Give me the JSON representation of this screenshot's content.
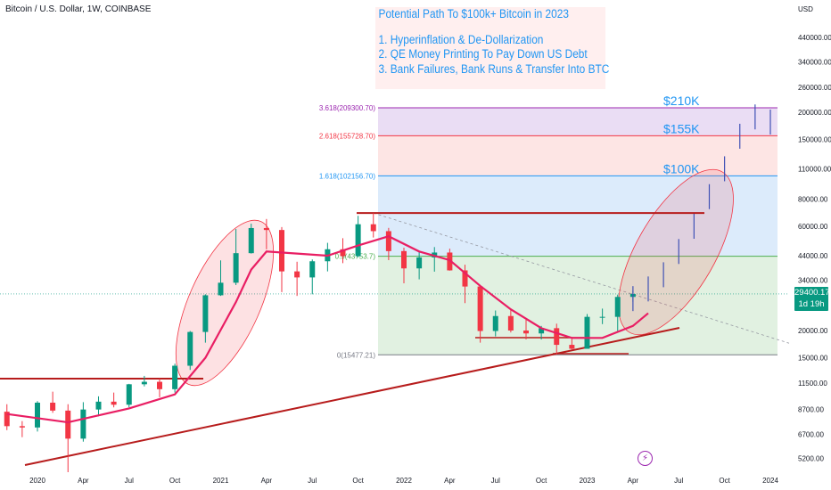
{
  "header": {
    "symbol_title": "Bitcoin / U.S. Dollar, 1W, COINBASE"
  },
  "annotation": {
    "title": "Potential Path To $100k+ Bitcoin in 2023",
    "points": [
      "1. Hyperinflation & De-Dollarization",
      "2. QE Money Printing To Pay Down US Debt",
      "3. Bank Failures, Bank Runs & Transfer Into BTC"
    ]
  },
  "price_axis": {
    "currency": "USD",
    "ticks": [
      "440000.00",
      "340000.00",
      "260000.00",
      "200000.00",
      "150000.00",
      "110000.00",
      "80000.00",
      "60000.00",
      "44000.00",
      "34000.00",
      "20000.00",
      "15000.00",
      "11500.00",
      "8700.00",
      "6700.00",
      "5200.00"
    ]
  },
  "time_axis": {
    "ticks": [
      "2020",
      "Apr",
      "Jul",
      "Oct",
      "2021",
      "Apr",
      "Jul",
      "Oct",
      "2022",
      "Apr",
      "Jul",
      "Oct",
      "2023",
      "Apr",
      "Jul",
      "Oct",
      "2024"
    ]
  },
  "current_price": {
    "price": "29400.17",
    "countdown": "1d 19h"
  },
  "indicators": {
    "bolt_icon": "lightning-bolt"
  },
  "chart_data": {
    "type": "candlestick",
    "title": "Bitcoin / U.S. Dollar, 1W, COINBASE",
    "y_scale": "log",
    "y_unit": "USD",
    "ylim": [
      4700,
      530000
    ],
    "x_range": [
      "2019-11",
      "2024-02"
    ],
    "fib_levels": [
      {
        "label": "3.618(209300.70)",
        "price": 209300.7,
        "color": "#9c27b0",
        "fill": "#e6d7f2"
      },
      {
        "label": "2.618(155728.70)",
        "price": 155728.7,
        "color": "#f23645",
        "fill": "#fde0df"
      },
      {
        "label": "1.618(102156.70)",
        "price": 102156.7,
        "color": "#2196f3",
        "fill": "#d6e8fa"
      },
      {
        "label": "0.5(43753.7)",
        "price": 43753.7,
        "color": "#4caf50",
        "fill": "#dcefdc"
      },
      {
        "label": "0(15477.21)",
        "price": 15477.21,
        "color": "#787b86",
        "fill": ""
      }
    ],
    "targets": [
      "$210K",
      "$155K",
      "$100K"
    ],
    "current_price": 29400.17,
    "series": [
      {
        "name": "BTCUSD",
        "kind": "candles",
        "color_up": "#089981",
        "color_down": "#f23645",
        "points": [
          [
            "2019-11",
            8500,
            9200,
            7000,
            7300
          ],
          [
            "2019-12",
            7300,
            7700,
            6500,
            7200
          ],
          [
            "2020-01",
            7200,
            9500,
            6900,
            9350
          ],
          [
            "2020-02",
            9350,
            10500,
            8400,
            8600
          ],
          [
            "2020-03",
            8600,
            9200,
            3800,
            6400
          ],
          [
            "2020-04",
            6400,
            9400,
            6200,
            8700
          ],
          [
            "2020-05",
            8700,
            10000,
            8100,
            9450
          ],
          [
            "2020-06",
            9450,
            10400,
            8900,
            9150
          ],
          [
            "2020-07",
            9150,
            11400,
            8900,
            11350
          ],
          [
            "2020-08",
            11350,
            12400,
            11100,
            11650
          ],
          [
            "2020-09",
            11650,
            12050,
            9900,
            10780
          ],
          [
            "2020-10",
            10780,
            14100,
            10400,
            13800
          ],
          [
            "2020-11",
            13800,
            19900,
            13200,
            19700
          ],
          [
            "2020-12",
            19700,
            29300,
            17600,
            29000
          ],
          [
            "2021-01",
            29000,
            41900,
            28800,
            33100
          ],
          [
            "2021-02",
            33100,
            58300,
            32300,
            45200
          ],
          [
            "2021-03",
            45200,
            61700,
            45000,
            58900
          ],
          [
            "2021-04",
            58900,
            64800,
            47100,
            57700
          ],
          [
            "2021-05",
            57700,
            59500,
            30000,
            37300
          ],
          [
            "2021-06",
            37300,
            41300,
            28800,
            35000
          ],
          [
            "2021-07",
            35000,
            42300,
            29300,
            41500
          ],
          [
            "2021-08",
            41500,
            50400,
            37300,
            47100
          ],
          [
            "2021-09",
            47100,
            52900,
            40700,
            43800
          ],
          [
            "2021-10",
            43800,
            67000,
            43300,
            61300
          ],
          [
            "2021-11",
            61300,
            69000,
            53300,
            57000
          ],
          [
            "2021-12",
            57000,
            59000,
            42000,
            46200
          ],
          [
            "2022-01",
            46200,
            47900,
            32900,
            38500
          ],
          [
            "2022-02",
            38500,
            45800,
            34300,
            43200
          ],
          [
            "2022-03",
            43200,
            48200,
            37200,
            45500
          ],
          [
            "2022-04",
            45500,
            47400,
            37600,
            37700
          ],
          [
            "2022-05",
            37700,
            40000,
            26700,
            31800
          ],
          [
            "2022-06",
            31800,
            31900,
            17600,
            19900
          ],
          [
            "2022-07",
            19900,
            24700,
            18800,
            23300
          ],
          [
            "2022-08",
            23300,
            25200,
            19600,
            20000
          ],
          [
            "2022-09",
            20000,
            22800,
            18200,
            19400
          ],
          [
            "2022-10",
            19400,
            21000,
            18200,
            20500
          ],
          [
            "2022-11",
            20500,
            21500,
            15500,
            17200
          ],
          [
            "2022-12",
            17200,
            18400,
            16300,
            16500
          ],
          [
            "2023-01",
            16500,
            23800,
            16500,
            23100
          ],
          [
            "2023-02",
            23100,
            25200,
            21400,
            23100
          ],
          [
            "2023-03",
            23100,
            29200,
            19600,
            28500
          ],
          [
            "2023-04",
            28500,
            30500,
            27100,
            29400
          ]
        ]
      },
      {
        "name": "Moving average",
        "kind": "line",
        "color": "#e91e63",
        "points": [
          [
            "2019-11",
            8300
          ],
          [
            "2020-03",
            7600
          ],
          [
            "2020-07",
            8800
          ],
          [
            "2020-10",
            10200
          ],
          [
            "2020-12",
            15000
          ],
          [
            "2021-02",
            27000
          ],
          [
            "2021-03",
            38000
          ],
          [
            "2021-04",
            46000
          ],
          [
            "2021-06",
            45000
          ],
          [
            "2021-08",
            44000
          ],
          [
            "2021-10",
            49000
          ],
          [
            "2021-12",
            54000
          ],
          [
            "2022-02",
            46000
          ],
          [
            "2022-04",
            42000
          ],
          [
            "2022-06",
            32000
          ],
          [
            "2022-08",
            25000
          ],
          [
            "2022-10",
            20500
          ],
          [
            "2022-12",
            18500
          ],
          [
            "2023-02",
            18500
          ],
          [
            "2023-04",
            21000
          ],
          [
            "2023-05",
            24000
          ]
        ]
      },
      {
        "name": "Projected path",
        "kind": "bars",
        "color": "#3f51b5",
        "points": [
          [
            "2023-04",
            28000
          ],
          [
            "2023-05",
            31000
          ],
          [
            "2023-06",
            36000
          ],
          [
            "2023-07",
            46000
          ],
          [
            "2023-08",
            60000
          ],
          [
            "2023-09",
            82000
          ],
          [
            "2023-10",
            110000
          ],
          [
            "2023-11",
            155000
          ],
          [
            "2023-12",
            190000
          ],
          [
            "2024-01",
            180000
          ]
        ]
      }
    ]
  }
}
